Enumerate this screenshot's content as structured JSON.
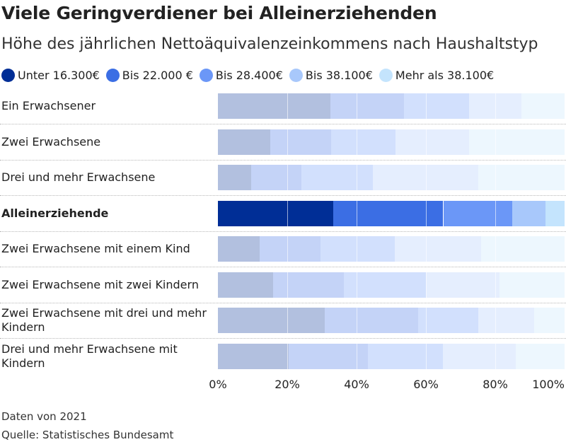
{
  "title": "Viele Geringverdiener bei Alleinerziehenden",
  "subtitle": "Höhe des jährlichen Nettoäquivalenzeinkommens nach Haushaltstyp",
  "footnote": "Daten von 2021",
  "source": "Quelle: Statistisches Bundesamt",
  "chart_data": {
    "type": "bar",
    "orientation": "horizontal",
    "stacked": true,
    "normalized": true,
    "xlim": [
      0,
      100
    ],
    "x_ticks": [
      "0%",
      "20%",
      "40%",
      "60%",
      "80%",
      "100%"
    ],
    "highlighted_category": "Alleinerziehende",
    "categories": [
      "Ein Erwachsener",
      "Zwei Erwachsene",
      "Drei und mehr Erwachsene",
      "Alleinerziehende",
      "Zwei Erwachsene mit einem Kind",
      "Zwei Erwachsene mit zwei Kindern",
      "Zwei Erwachsene mit drei und mehr Kindern",
      "Drei und mehr Erwachsene mit Kindern"
    ],
    "series": [
      {
        "name": "Unter 16.300€",
        "color": "#002e96",
        "values": [
          32.4,
          15.0,
          9.6,
          33.3,
          12.0,
          16.0,
          30.9,
          20.5
        ]
      },
      {
        "name": "Bis 22.000 €",
        "color": "#3b6ee4",
        "values": [
          21.2,
          17.7,
          14.5,
          31.7,
          17.6,
          20.3,
          26.9,
          22.7
        ]
      },
      {
        "name": "Bis 28.400€",
        "color": "#6b97f7",
        "values": [
          18.9,
          18.6,
          20.5,
          19.9,
          21.5,
          23.7,
          17.3,
          21.6
        ]
      },
      {
        "name": "Bis 38.100€",
        "color": "#a8c8fb",
        "values": [
          15.0,
          21.2,
          30.5,
          9.6,
          24.9,
          21.2,
          16.2,
          21.1
        ]
      },
      {
        "name": "Mehr als 38.100€",
        "color": "#c4e4fd",
        "values": [
          12.5,
          27.5,
          24.9,
          5.5,
          24.0,
          18.8,
          8.7,
          14.1
        ]
      }
    ]
  }
}
